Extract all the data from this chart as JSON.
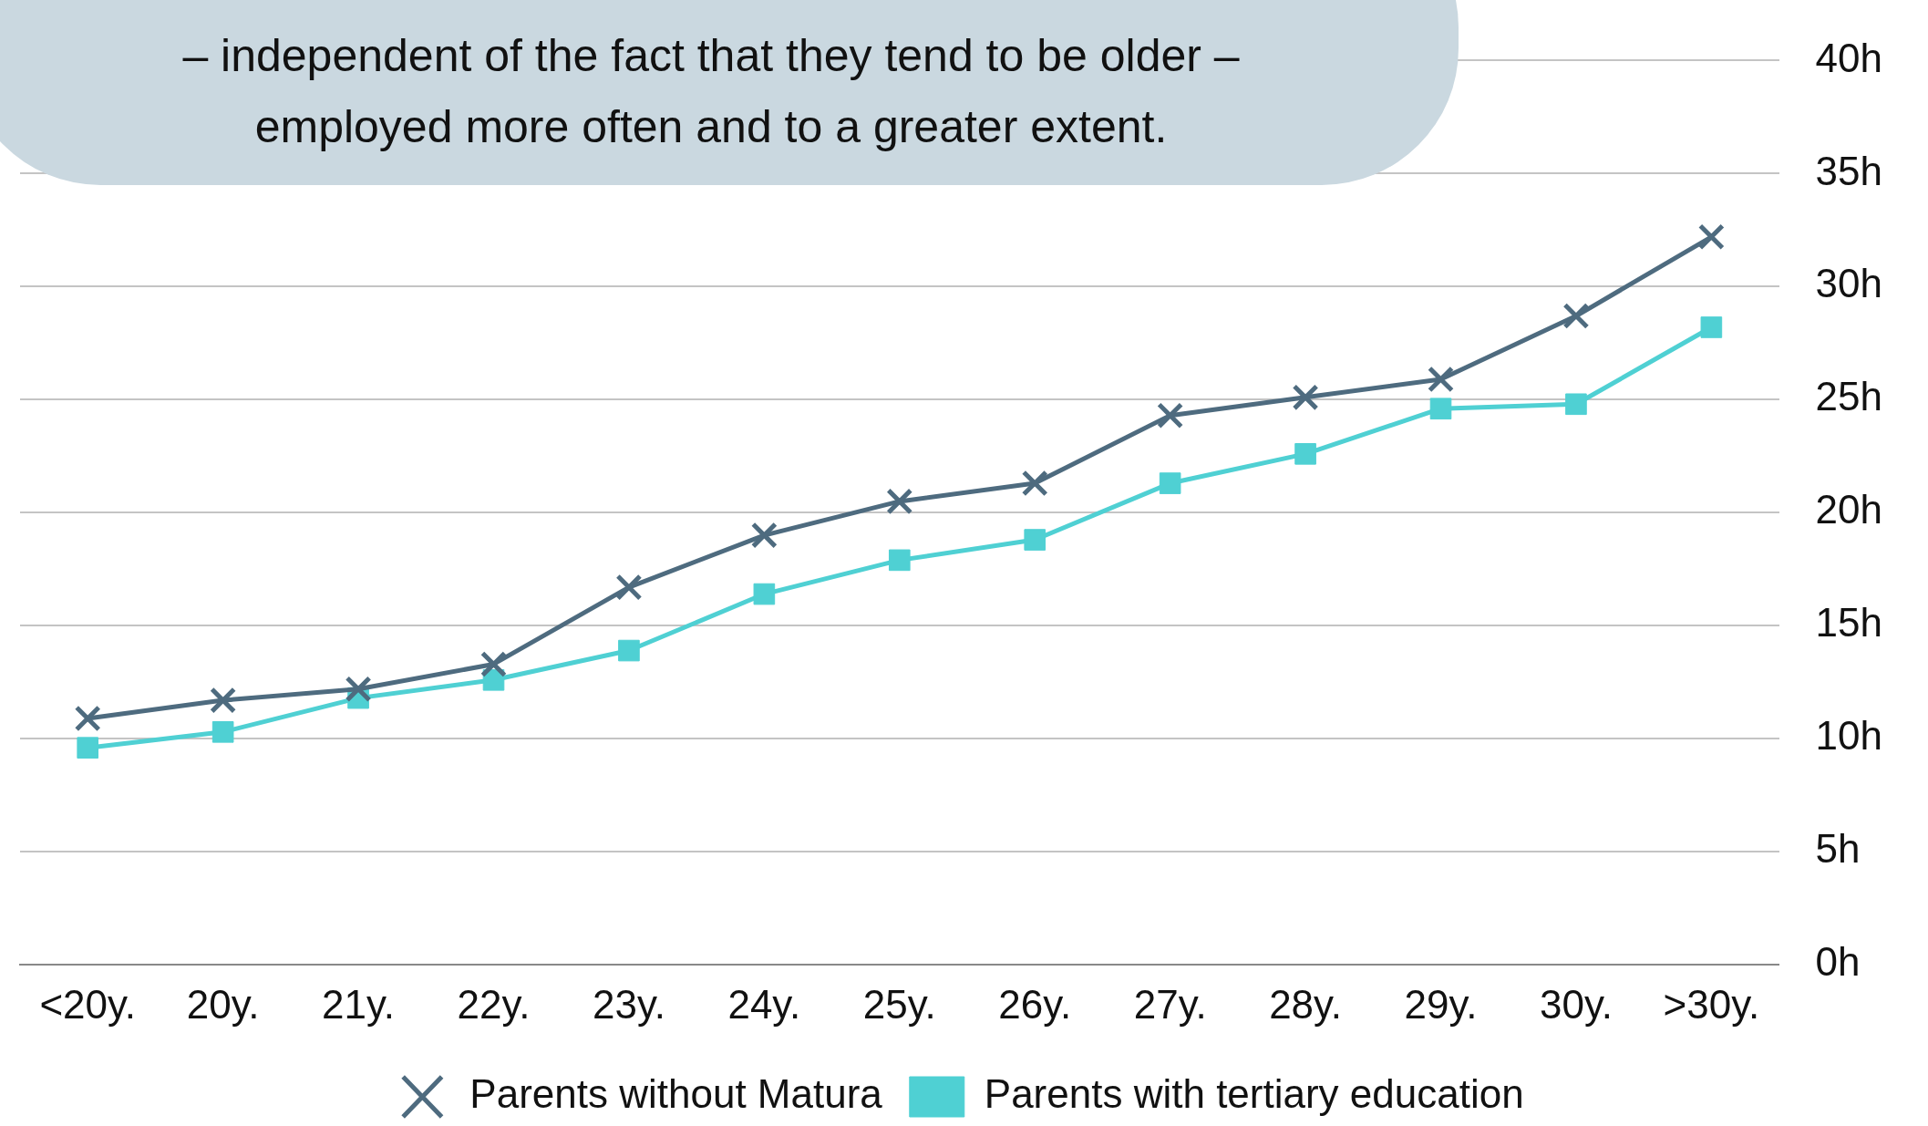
{
  "chart_data": {
    "type": "line",
    "categories": [
      "<20y.",
      "20y.",
      "21y.",
      "22y.",
      "23y.",
      "24y.",
      "25y.",
      "26y.",
      "27y.",
      "28y.",
      "29y.",
      "30y.",
      ">30y."
    ],
    "series": [
      {
        "name": "Parents without Matura",
        "color": "#4e6b7f",
        "marker": "cross",
        "values": [
          10.9,
          11.7,
          12.2,
          13.3,
          16.7,
          19.0,
          20.5,
          21.3,
          24.3,
          25.1,
          25.9,
          28.7,
          32.2
        ]
      },
      {
        "name": "Parents with tertiary education",
        "color": "#4fd0d3",
        "marker": "square",
        "values": [
          9.6,
          10.3,
          11.8,
          12.6,
          13.9,
          16.4,
          17.9,
          18.8,
          21.3,
          22.6,
          24.6,
          24.8,
          28.2
        ]
      }
    ],
    "ylim": [
      0,
      40
    ],
    "yticks": [
      {
        "value": 0,
        "label": "0h"
      },
      {
        "value": 5,
        "label": "5h"
      },
      {
        "value": 10,
        "label": "10h"
      },
      {
        "value": 15,
        "label": "15h"
      },
      {
        "value": 20,
        "label": "20h"
      },
      {
        "value": 25,
        "label": "25h"
      },
      {
        "value": 30,
        "label": "30h"
      },
      {
        "value": 35,
        "label": "35h"
      },
      {
        "value": 40,
        "label": "40h"
      }
    ],
    "grid": "y",
    "legend": "bottom",
    "line_style": "solid",
    "annotations": [
      "– independent of the fact that they tend to be older –",
      "employed more often and to a greater extent."
    ]
  }
}
